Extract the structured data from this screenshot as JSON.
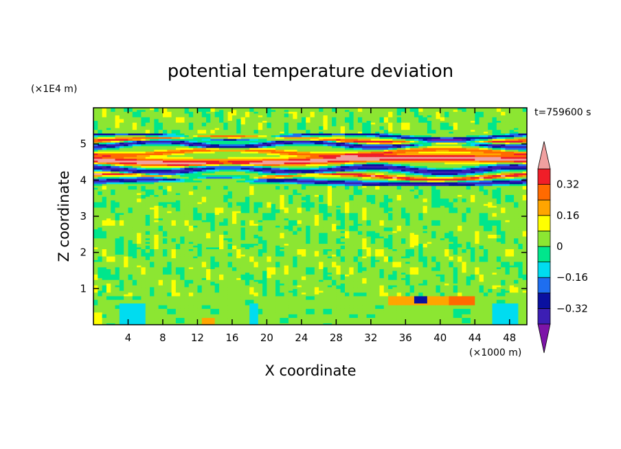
{
  "chart_data": {
    "type": "heatmap",
    "title": "potential temperature deviation",
    "time_label": "t=759600 s",
    "xlabel": "X coordinate",
    "ylabel": "Z coordinate",
    "x_unit": "(×1000 m)",
    "y_unit": "(×1E4 m)",
    "xlim": [
      0,
      50
    ],
    "ylim": [
      0,
      6
    ],
    "x_ticks": [
      "4",
      "8",
      "12",
      "16",
      "20",
      "24",
      "28",
      "32",
      "36",
      "40",
      "44",
      "48"
    ],
    "y_ticks": [
      "1",
      "2",
      "3",
      "4",
      "5"
    ],
    "x_tick_values": [
      4,
      8,
      12,
      16,
      20,
      24,
      28,
      32,
      36,
      40,
      44,
      48
    ],
    "y_tick_values": [
      1,
      2,
      3,
      4,
      5
    ],
    "colorbar": {
      "levels": [
        -0.4,
        -0.32,
        -0.24,
        -0.16,
        -0.08,
        0,
        0.08,
        0.16,
        0.24,
        0.32,
        0.4
      ],
      "labels": [
        "0.32",
        "0.16",
        "0",
        "−0.16",
        "−0.32"
      ],
      "label_values": [
        0.32,
        0.16,
        0,
        -0.16,
        -0.32
      ],
      "colors_low_to_high": [
        "#7d14a8",
        "#3c1eb4",
        "#0a10a0",
        "#1e6ef0",
        "#00dcf0",
        "#00e68c",
        "#8ce632",
        "#ffff00",
        "#ffa500",
        "#ff6a00",
        "#f01e28",
        "#f0a0a0"
      ],
      "extend": "both"
    },
    "bands": [
      {
        "z_range": [
          0,
          0.8
        ],
        "description": "near-zero with small positive/negative patches",
        "values": [
          0.02,
          -0.1,
          0.12,
          -0.2,
          0.25
        ]
      },
      {
        "z_range": [
          0.8,
          3.8
        ],
        "description": "small-scale noise near zero",
        "values": [
          0.03,
          0.09,
          -0.02
        ]
      },
      {
        "z_range": [
          3.8,
          5.3
        ],
        "description": "strong alternating layers",
        "values": [
          -0.4,
          0.4,
          0.3,
          -0.35,
          0.38,
          -0.4
        ]
      },
      {
        "z_range": [
          5.3,
          6.0
        ],
        "description": "near zero",
        "values": [
          0.05,
          0.1
        ]
      }
    ]
  }
}
